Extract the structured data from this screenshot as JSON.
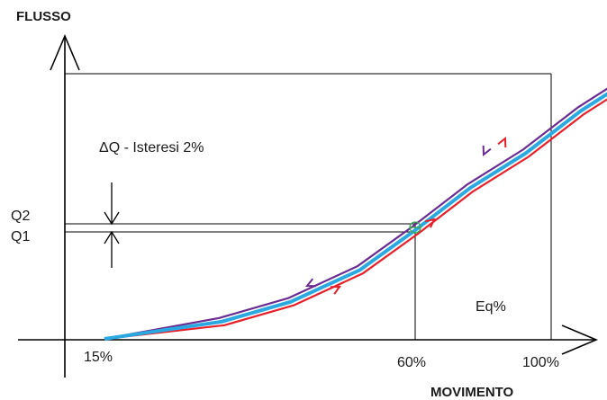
{
  "diagram": {
    "y_axis_title": "FLUSSO",
    "x_axis_title": "MOVIMENTO",
    "annotation": "ΔQ - Isteresi 2%",
    "curve_label": "Eq%",
    "q2_label": "Q2",
    "q1_label": "Q1",
    "x_ticks": [
      "15%",
      "60%",
      "100%"
    ],
    "colors": {
      "axis": "#000000",
      "opening_curve": "#e8202a",
      "mean_curve": "#2aa8e0",
      "closing_curve": "#6a2c91",
      "intersection_marker": "#3aa655"
    },
    "curve_points": [
      {
        "movimento": 15,
        "flusso": 0
      },
      {
        "movimento": 32,
        "flusso": 6.5
      },
      {
        "movimento": 42,
        "flusso": 14
      },
      {
        "movimento": 52,
        "flusso": 26
      },
      {
        "movimento": 60,
        "flusso": 41
      },
      {
        "movimento": 68,
        "flusso": 57
      },
      {
        "movimento": 76,
        "flusso": 70
      },
      {
        "movimento": 84,
        "flusso": 86
      },
      {
        "movimento": 90,
        "flusso": 96
      },
      {
        "movimento": 93,
        "flusso": 100
      }
    ]
  }
}
